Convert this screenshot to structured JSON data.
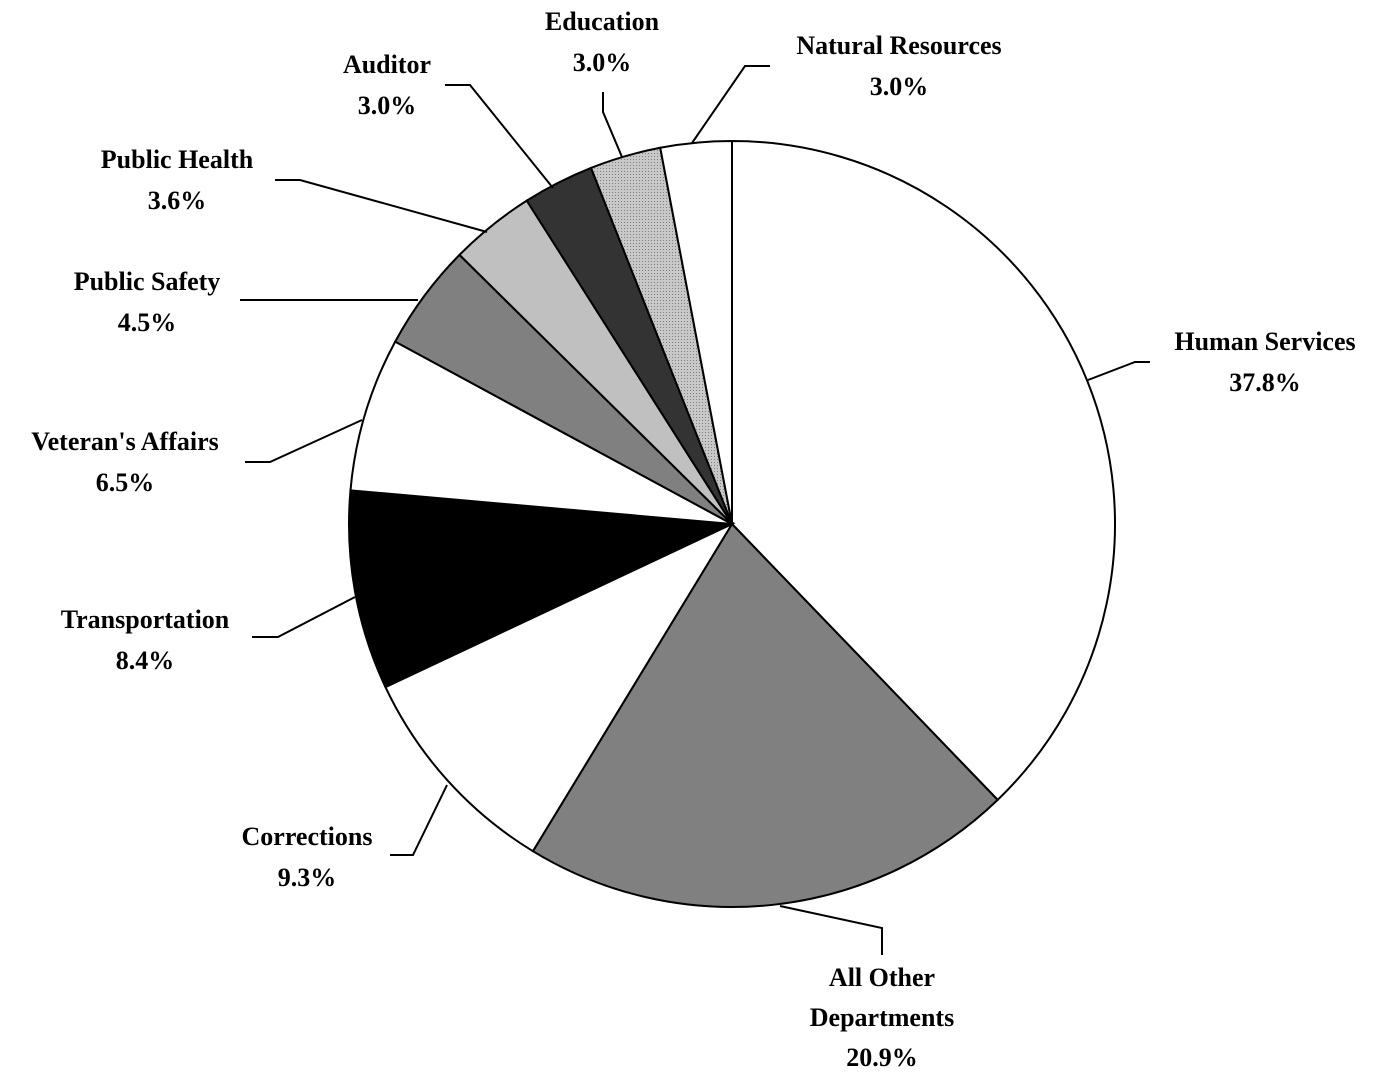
{
  "chart_data": {
    "type": "pie",
    "categories": [
      "Human Services",
      "All Other Departments",
      "Corrections",
      "Transportation",
      "Veteran's Affairs",
      "Public Safety",
      "Public Health",
      "Auditor",
      "Education",
      "Natural Resources"
    ],
    "values": [
      37.8,
      20.9,
      9.3,
      8.4,
      6.5,
      4.5,
      3.6,
      3.0,
      3.0,
      3.0
    ],
    "value_labels": [
      "37.8%",
      "20.9%",
      "9.3%",
      "8.4%",
      "6.5%",
      "4.5%",
      "3.6%",
      "3.0%",
      "3.0%",
      "3.0%"
    ],
    "colors": [
      "#ffffff",
      "#808080",
      "#ffffff",
      "#000000",
      "#ffffff",
      "#808080",
      "#c0c0c0",
      "#333333",
      "#b4b4b4",
      "#ffffff"
    ]
  }
}
